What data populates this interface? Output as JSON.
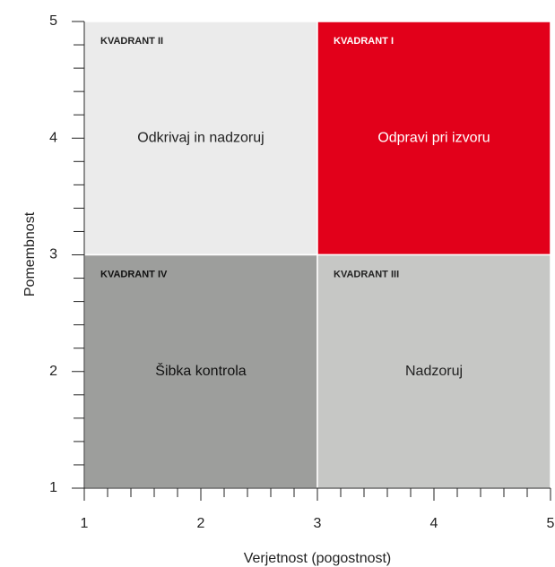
{
  "chart_data": {
    "type": "quadrant",
    "xlabel": "Verjetnost (pogostnost)",
    "ylabel": "Pomembnost",
    "xlim": [
      1,
      5
    ],
    "ylim": [
      1,
      5
    ],
    "xticks": [
      1,
      2,
      3,
      4,
      5
    ],
    "yticks": [
      1,
      2,
      3,
      4,
      5
    ],
    "xminorticks": [
      1.2,
      1.4,
      1.6,
      1.8,
      2.2,
      2.4,
      2.6,
      2.8,
      3.2,
      3.4,
      3.6,
      3.8,
      4.2,
      4.4,
      4.6,
      4.8
    ],
    "yminorticks": [
      1.2,
      1.4,
      1.6,
      1.8,
      2.2,
      2.4,
      2.6,
      2.8,
      3.2,
      3.4,
      3.6,
      3.8,
      4.2,
      4.4,
      4.6,
      4.8
    ],
    "quadrants": [
      {
        "tag": "KVADRANT II",
        "label": "Odkrivaj in nadzoruj",
        "x": [
          1,
          3
        ],
        "y": [
          3,
          5
        ],
        "color": "#ebebeb",
        "text_color": "#222222"
      },
      {
        "tag": "KVADRANT I",
        "label": "Odpravi pri izvoru",
        "x": [
          3,
          5
        ],
        "y": [
          3,
          5
        ],
        "color": "#e2001a",
        "text_color": "#ffffff"
      },
      {
        "tag": "KVADRANT IV",
        "label": "Šibka kontrola",
        "x": [
          1,
          3
        ],
        "y": [
          1,
          3
        ],
        "color": "#9d9e9c",
        "text_color": "#111111"
      },
      {
        "tag": "KVADRANT III",
        "label": "Nadzoruj",
        "x": [
          3,
          5
        ],
        "y": [
          1,
          3
        ],
        "color": "#c6c7c5",
        "text_color": "#222222"
      }
    ]
  }
}
